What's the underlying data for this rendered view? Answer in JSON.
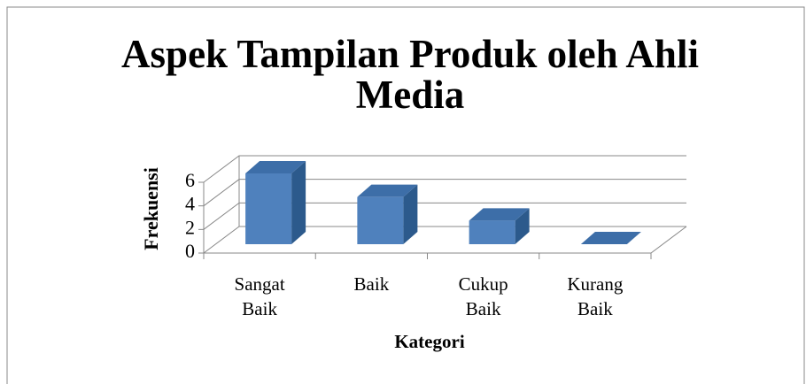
{
  "chart_data": {
    "type": "bar3d",
    "title": "Aspek Tampilan Produk oleh Ahli Media",
    "categories": [
      "Sangat Baik",
      "Baik",
      "Cukup Baik",
      "Kurang Baik"
    ],
    "values": [
      6,
      4,
      2,
      0
    ],
    "color": "#4f81bd",
    "xlabel": "Kategori",
    "ylabel": "Frekuensi",
    "ylim": [
      0,
      6
    ],
    "yticks": [
      0,
      2,
      4,
      6
    ],
    "grid": true
  }
}
